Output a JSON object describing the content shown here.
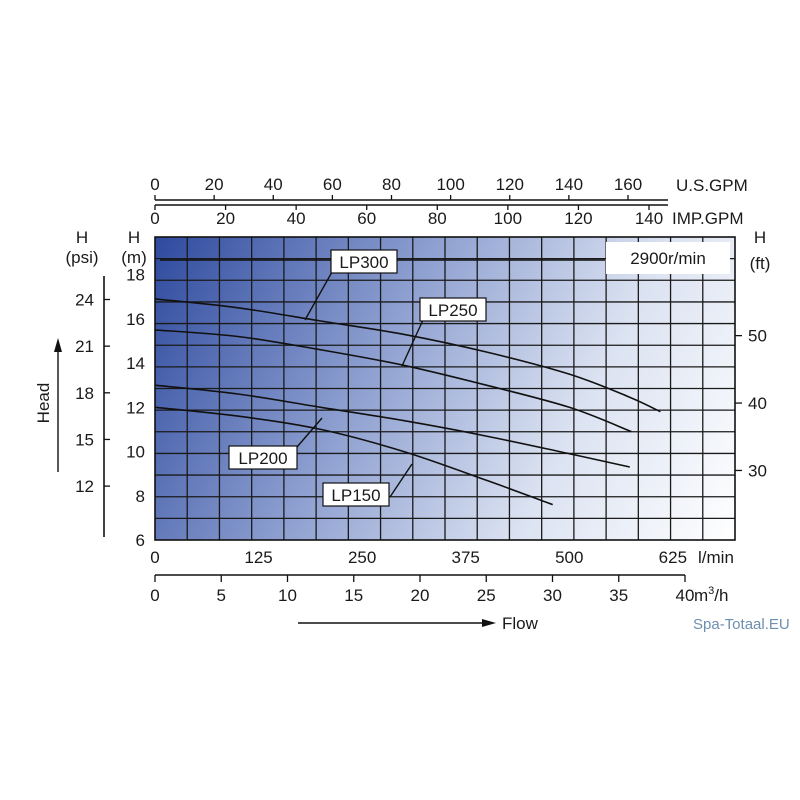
{
  "watermark": "Spa-Totaal.EU",
  "chart_data": {
    "type": "line",
    "speed_label": "2900r/min",
    "axes": {
      "x_lmin": {
        "unit": "l/min",
        "range": [
          0,
          700
        ],
        "ticks": [
          0,
          125,
          250,
          375,
          500,
          625
        ]
      },
      "x_m3h": {
        "unit_base": "m",
        "unit_sup": "3",
        "unit_tail": "/h",
        "range": [
          0,
          42
        ],
        "ticks": [
          0,
          5,
          10,
          15,
          20,
          25,
          30,
          35,
          40
        ]
      },
      "x_usgpm": {
        "unit": "U.S.GPM",
        "range": [
          0,
          185
        ],
        "ticks": [
          0,
          20,
          40,
          60,
          80,
          100,
          120,
          140,
          160
        ]
      },
      "x_impgpm": {
        "unit": "IMP.GPM",
        "range": [
          0,
          154
        ],
        "ticks": [
          0,
          20,
          40,
          60,
          80,
          100,
          120,
          140
        ]
      },
      "y_m": {
        "label_top": "H",
        "label_unit": "(m)",
        "range": [
          6,
          19.7
        ],
        "ticks": [
          6,
          8,
          10,
          12,
          14,
          16,
          18
        ]
      },
      "y_psi": {
        "label_top": "H",
        "label_unit": "(psi)",
        "ticks": [
          12,
          15,
          18,
          21,
          24
        ]
      },
      "y_ft": {
        "label_top": "H",
        "label_unit": "(ft)",
        "ticks": [
          30,
          40,
          50
        ]
      }
    },
    "xlabel": "Flow",
    "ylabel": "Head",
    "grid": true,
    "series": [
      {
        "name": "LP300",
        "x": [
          0,
          100,
          200,
          300,
          400,
          500,
          570,
          610
        ],
        "y": [
          16.9,
          16.5,
          15.9,
          15.3,
          14.5,
          13.5,
          12.5,
          11.8
        ]
      },
      {
        "name": "LP250",
        "x": [
          0,
          100,
          200,
          300,
          400,
          500,
          575
        ],
        "y": [
          15.5,
          15.2,
          14.6,
          13.9,
          13.0,
          12.0,
          10.9
        ]
      },
      {
        "name": "LP200",
        "x": [
          0,
          100,
          200,
          300,
          400,
          500,
          573
        ],
        "y": [
          13.0,
          12.6,
          12.0,
          11.4,
          10.7,
          9.9,
          9.3
        ]
      },
      {
        "name": "LP150",
        "x": [
          0,
          100,
          200,
          300,
          400,
          480
        ],
        "y": [
          12.0,
          11.6,
          11.0,
          10.0,
          8.7,
          7.6
        ]
      }
    ]
  }
}
